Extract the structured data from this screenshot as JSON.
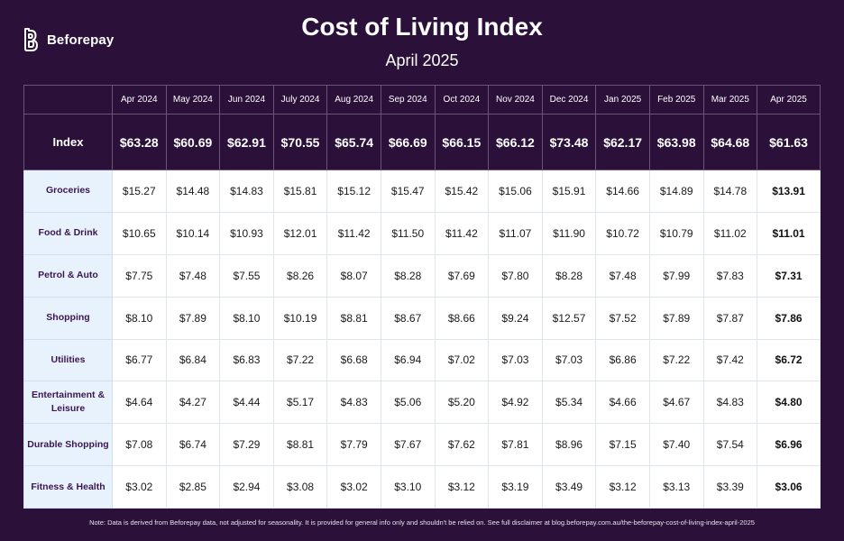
{
  "brand": {
    "name": "Beforepay",
    "logo_icon": "beforepay-logo-icon"
  },
  "title": "Cost of Living Index",
  "subtitle": "April 2025",
  "colors": {
    "background": "#2b1139",
    "row_label_bg": "#e8f2fd",
    "row_label_text": "#3a1650",
    "cell_bg": "#ffffff"
  },
  "chart_data": {
    "type": "table",
    "title": "Cost of Living Index",
    "subtitle": "April 2025",
    "columns": [
      "Apr 2024",
      "May 2024",
      "Jun 2024",
      "July 2024",
      "Aug 2024",
      "Sep 2024",
      "Oct 2024",
      "Nov 2024",
      "Dec 2024",
      "Jan 2025",
      "Feb 2025",
      "Mar 2025",
      "Apr 2025"
    ],
    "index": {
      "label": "Index",
      "values": [
        "$63.28",
        "$60.69",
        "$62.91",
        "$70.55",
        "$65.74",
        "$66.69",
        "$66.15",
        "$66.12",
        "$73.48",
        "$62.17",
        "$63.98",
        "$64.68",
        "$61.63"
      ]
    },
    "rows": [
      {
        "label": "Groceries",
        "values": [
          "$15.27",
          "$14.48",
          "$14.83",
          "$15.81",
          "$15.12",
          "$15.47",
          "$15.42",
          "$15.06",
          "$15.91",
          "$14.66",
          "$14.89",
          "$14.78",
          "$13.91"
        ]
      },
      {
        "label": "Food & Drink",
        "values": [
          "$10.65",
          "$10.14",
          "$10.93",
          "$12.01",
          "$11.42",
          "$11.50",
          "$11.42",
          "$11.07",
          "$11.90",
          "$10.72",
          "$10.79",
          "$11.02",
          "$11.01"
        ]
      },
      {
        "label": "Petrol & Auto",
        "values": [
          "$7.75",
          "$7.48",
          "$7.55",
          "$8.26",
          "$8.07",
          "$8.28",
          "$7.69",
          "$7.80",
          "$8.28",
          "$7.48",
          "$7.99",
          "$7.83",
          "$7.31"
        ]
      },
      {
        "label": "Shopping",
        "values": [
          "$8.10",
          "$7.89",
          "$8.10",
          "$10.19",
          "$8.81",
          "$8.67",
          "$8.66",
          "$9.24",
          "$12.57",
          "$7.52",
          "$7.89",
          "$7.87",
          "$7.86"
        ]
      },
      {
        "label": "Utilities",
        "values": [
          "$6.77",
          "$6.84",
          "$6.83",
          "$7.22",
          "$6.68",
          "$6.94",
          "$7.02",
          "$7.03",
          "$7.03",
          "$6.86",
          "$7.22",
          "$7.42",
          "$6.72"
        ]
      },
      {
        "label": "Entertainment & Leisure",
        "values": [
          "$4.64",
          "$4.27",
          "$4.44",
          "$5.17",
          "$4.83",
          "$5.06",
          "$5.20",
          "$4.92",
          "$5.34",
          "$4.66",
          "$4.67",
          "$4.83",
          "$4.80"
        ]
      },
      {
        "label": "Durable Shopping",
        "values": [
          "$7.08",
          "$6.74",
          "$7.29",
          "$8.81",
          "$7.79",
          "$7.67",
          "$7.62",
          "$7.81",
          "$8.96",
          "$7.15",
          "$7.40",
          "$7.54",
          "$6.96"
        ]
      },
      {
        "label": "Fitness & Health",
        "values": [
          "$3.02",
          "$2.85",
          "$2.94",
          "$3.08",
          "$3.02",
          "$3.10",
          "$3.12",
          "$3.19",
          "$3.49",
          "$3.12",
          "$3.13",
          "$3.39",
          "$3.06"
        ]
      }
    ]
  },
  "note": "Note: Data is derived from Beforepay data, not adjusted for seasonality. It is provided for general info only and shouldn't be relied on. See full disclaimer at blog.beforepay.com.au/the-beforepay-cost-of-living-index-april-2025"
}
